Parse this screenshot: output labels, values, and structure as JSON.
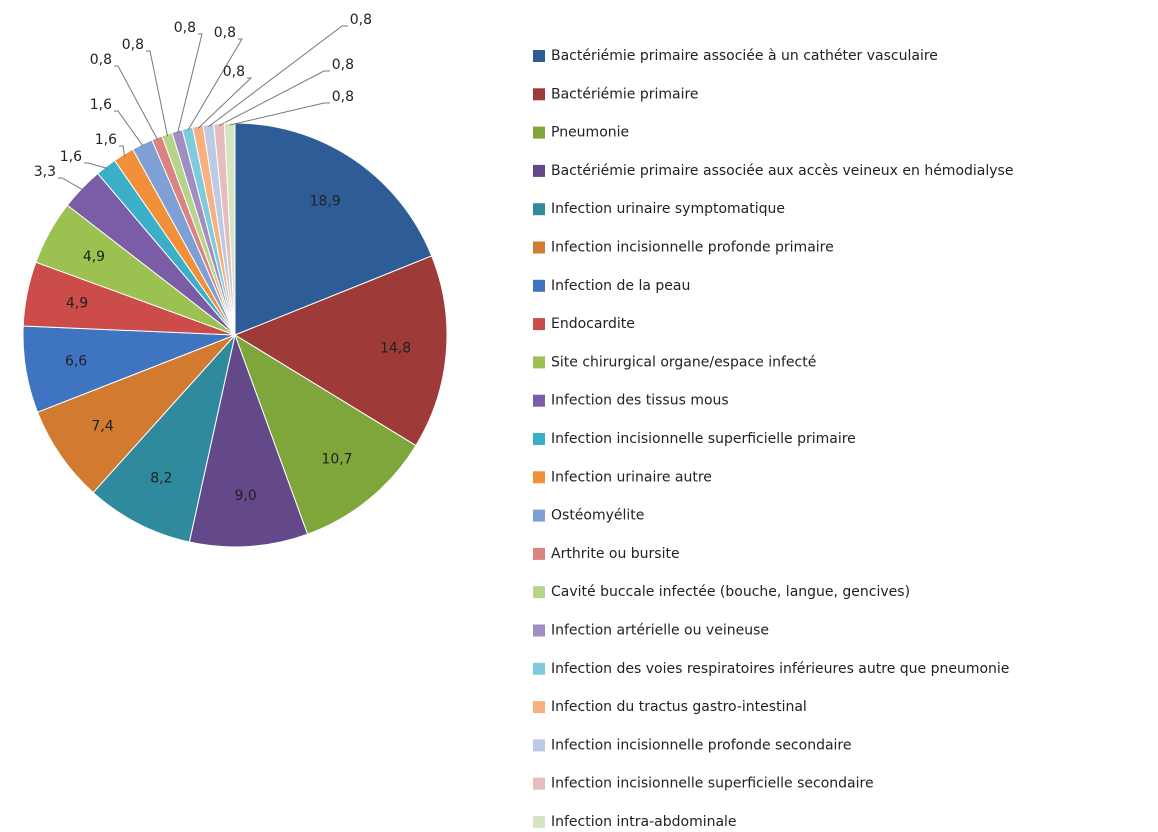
{
  "chart_data": {
    "type": "pie",
    "categories": [
      "Bactériémie primaire associée à un cathéter vasculaire",
      "Bactériémie primaire",
      "Pneumonie",
      "Bactériémie primaire associée aux accès veineux en hémodialyse",
      "Infection urinaire symptomatique",
      "Infection incisionnelle profonde primaire",
      "Infection de la peau",
      "Endocardite",
      "Site chirurgical organe/espace infecté",
      "Infection des tissus mous",
      "Infection incisionnelle superficielle primaire",
      "Infection urinaire autre",
      "Ostéomyélite",
      "Arthrite ou bursite",
      "Cavité buccale infectée (bouche, langue, gencives)",
      "Infection artérielle ou veineuse",
      "Infection des voies respiratoires inférieures autre que pneumonie",
      "Infection du tractus gastro-intestinal",
      "Infection incisionnelle profonde secondaire",
      "Infection incisionnelle superficielle secondaire",
      "Infection intra-abdominale"
    ],
    "values": [
      18.9,
      14.8,
      10.7,
      9.0,
      8.2,
      7.4,
      6.6,
      4.9,
      4.9,
      3.3,
      1.6,
      1.6,
      1.6,
      0.8,
      0.8,
      0.8,
      0.8,
      0.8,
      0.8,
      0.8,
      0.8
    ],
    "value_labels": [
      "18,9",
      "14,8",
      "10,7",
      "9,0",
      "8,2",
      "7,4",
      "6,6",
      "4,9",
      "4,9",
      "3,3",
      "1,6",
      "1,6",
      "1,6",
      "0,8",
      "0,8",
      "0,8",
      "0,8",
      "0,8",
      "0,8",
      "0,8",
      "0,8"
    ],
    "colors": [
      "#2E5C96",
      "#9E3A37",
      "#7FA63A",
      "#64498A",
      "#2F8A9E",
      "#D27A2F",
      "#3F74C0",
      "#CB4C48",
      "#9BC250",
      "#7B5CA7",
      "#3AAFC7",
      "#F28F3A",
      "#7FA0D5",
      "#D98480",
      "#B6D48C",
      "#A28DC2",
      "#7FCBDC",
      "#F8B07F",
      "#BCCAE5",
      "#E6BDBC",
      "#D5E4C1"
    ],
    "legend": "right"
  }
}
